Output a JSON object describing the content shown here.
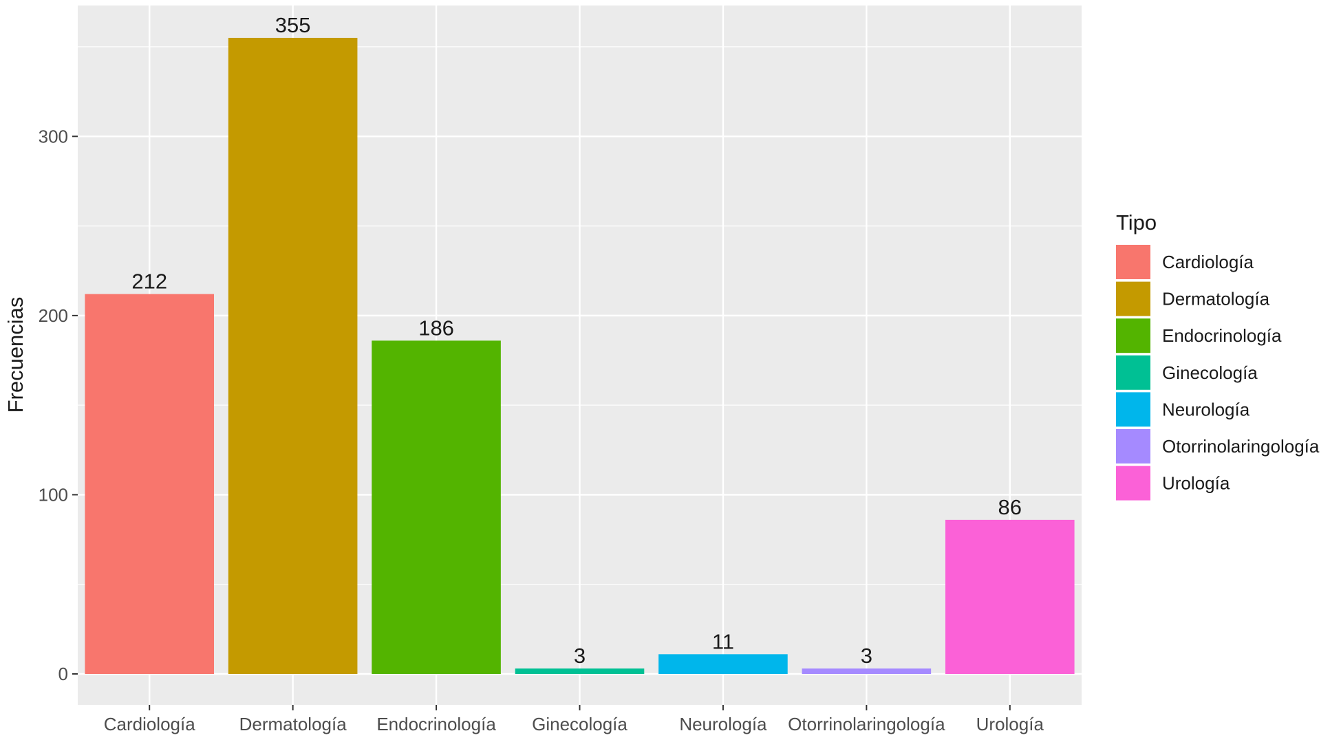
{
  "chart_data": {
    "type": "bar",
    "categories": [
      "Cardiología",
      "Dermatología",
      "Endocrinología",
      "Ginecología",
      "Neurología",
      "Otorrinolaringología",
      "Urología"
    ],
    "values": [
      212,
      355,
      186,
      3,
      11,
      3,
      86
    ],
    "colors": [
      "#F8766D",
      "#C49A00",
      "#53B400",
      "#00C094",
      "#00B6EB",
      "#A58AFF",
      "#FB61D7"
    ],
    "title": "",
    "xlabel": "",
    "ylabel": "Frecuencias",
    "ylim": [
      0,
      372
    ],
    "yticks": [
      0,
      100,
      200,
      300
    ],
    "grid": true,
    "legend": {
      "title": "Tipo",
      "position": "right",
      "entries": [
        "Cardiología",
        "Dermatología",
        "Endocrinología",
        "Ginecología",
        "Neurología",
        "Otorrinolaringología",
        "Urología"
      ]
    },
    "panel_background": "#EBEBEB",
    "grid_color": "#FFFFFF"
  }
}
